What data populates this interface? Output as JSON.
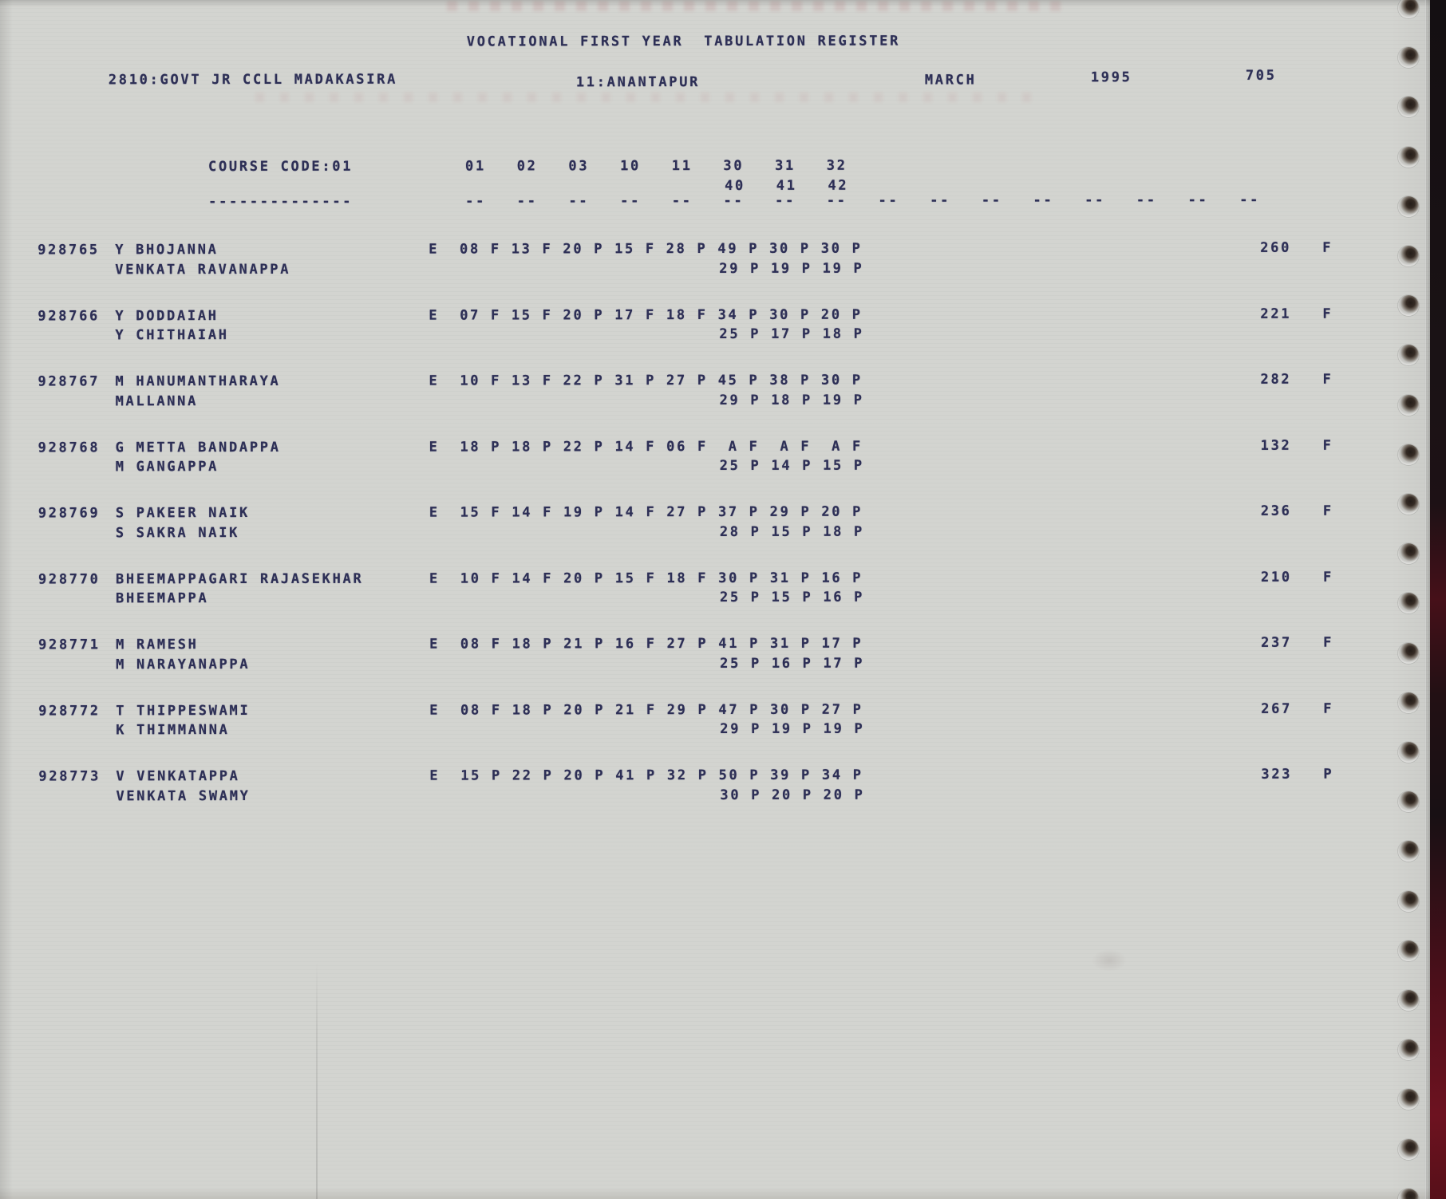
{
  "document": {
    "title": "VOCATIONAL FIRST YEAR  TABULATION REGISTER",
    "college": "2810:GOVT JR CCLL MADAKASIRA",
    "district": "11:ANANTAPUR",
    "exam_month": "MARCH",
    "exam_year": "1995",
    "page_number": "705"
  },
  "table": {
    "course_code_label": "COURSE CODE:01",
    "course_code_underline": "--------------",
    "subject_codes_line1": "01   02   03   10   11   30   31   32",
    "subject_codes_line2": "40   41   42",
    "column_rule": "--   --   --   --   --   --   --   --   --   --   --   --   --   --   --   --",
    "rows": [
      {
        "regno": "928765",
        "name": "Y BHOJANNA",
        "parent": "VENKATA RAVANAPPA",
        "marks1": "E  08 F 13 F 20 P 15 F 28 P 49 P 30 P 30 P",
        "marks2": "29 P 19 P 19 P",
        "total": "260",
        "result": "F"
      },
      {
        "regno": "928766",
        "name": "Y DODDAIAH",
        "parent": "Y CHITHAIAH",
        "marks1": "E  07 F 15 F 20 P 17 F 18 F 34 P 30 P 20 P",
        "marks2": "25 P 17 P 18 P",
        "total": "221",
        "result": "F"
      },
      {
        "regno": "928767",
        "name": "M HANUMANTHARAYA",
        "parent": "MALLANNA",
        "marks1": "E  10 F 13 F 22 P 31 P 27 P 45 P 38 P 30 P",
        "marks2": "29 P 18 P 19 P",
        "total": "282",
        "result": "F"
      },
      {
        "regno": "928768",
        "name": "G METTA BANDAPPA",
        "parent": "M GANGAPPA",
        "marks1": "E  18 P 18 P 22 P 14 F 06 F  A F  A F  A F",
        "marks2": "25 P 14 P 15 P",
        "total": "132",
        "result": "F"
      },
      {
        "regno": "928769",
        "name": "S PAKEER NAIK",
        "parent": "S SAKRA NAIK",
        "marks1": "E  15 F 14 F 19 P 14 F 27 P 37 P 29 P 20 P",
        "marks2": "28 P 15 P 18 P",
        "total": "236",
        "result": "F"
      },
      {
        "regno": "928770",
        "name": "BHEEMAPPAGARI RAJASEKHAR",
        "parent": "BHEEMAPPA",
        "marks1": "E  10 F 14 F 20 P 15 F 18 F 30 P 31 P 16 P",
        "marks2": "25 P 15 P 16 P",
        "total": "210",
        "result": "F"
      },
      {
        "regno": "928771",
        "name": "M RAMESH",
        "parent": "M NARAYANAPPA",
        "marks1": "E  08 F 18 P 21 P 16 F 27 P 41 P 31 P 17 P",
        "marks2": "25 P 16 P 17 P",
        "total": "237",
        "result": "F"
      },
      {
        "regno": "928772",
        "name": "T THIPPESWAMI",
        "parent": "K THIMMANNA",
        "marks1": "E  08 F 18 P 20 P 21 F 29 P 47 P 30 P 27 P",
        "marks2": "29 P 19 P 19 P",
        "total": "267",
        "result": "F"
      },
      {
        "regno": "928773",
        "name": "V VENKATAPPA",
        "parent": "VENKATA SWAMY",
        "marks1": "E  15 P 22 P 20 P 41 P 32 P 50 P 39 P 34 P",
        "marks2": "30 P 20 P 20 P",
        "total": "323",
        "result": "P"
      }
    ]
  },
  "colors": {
    "paper": "#d3d4d0",
    "ink": "#2d2f56",
    "binding_edge_dark": "#1a1215",
    "binding_edge_maroon": "#6d1220"
  }
}
